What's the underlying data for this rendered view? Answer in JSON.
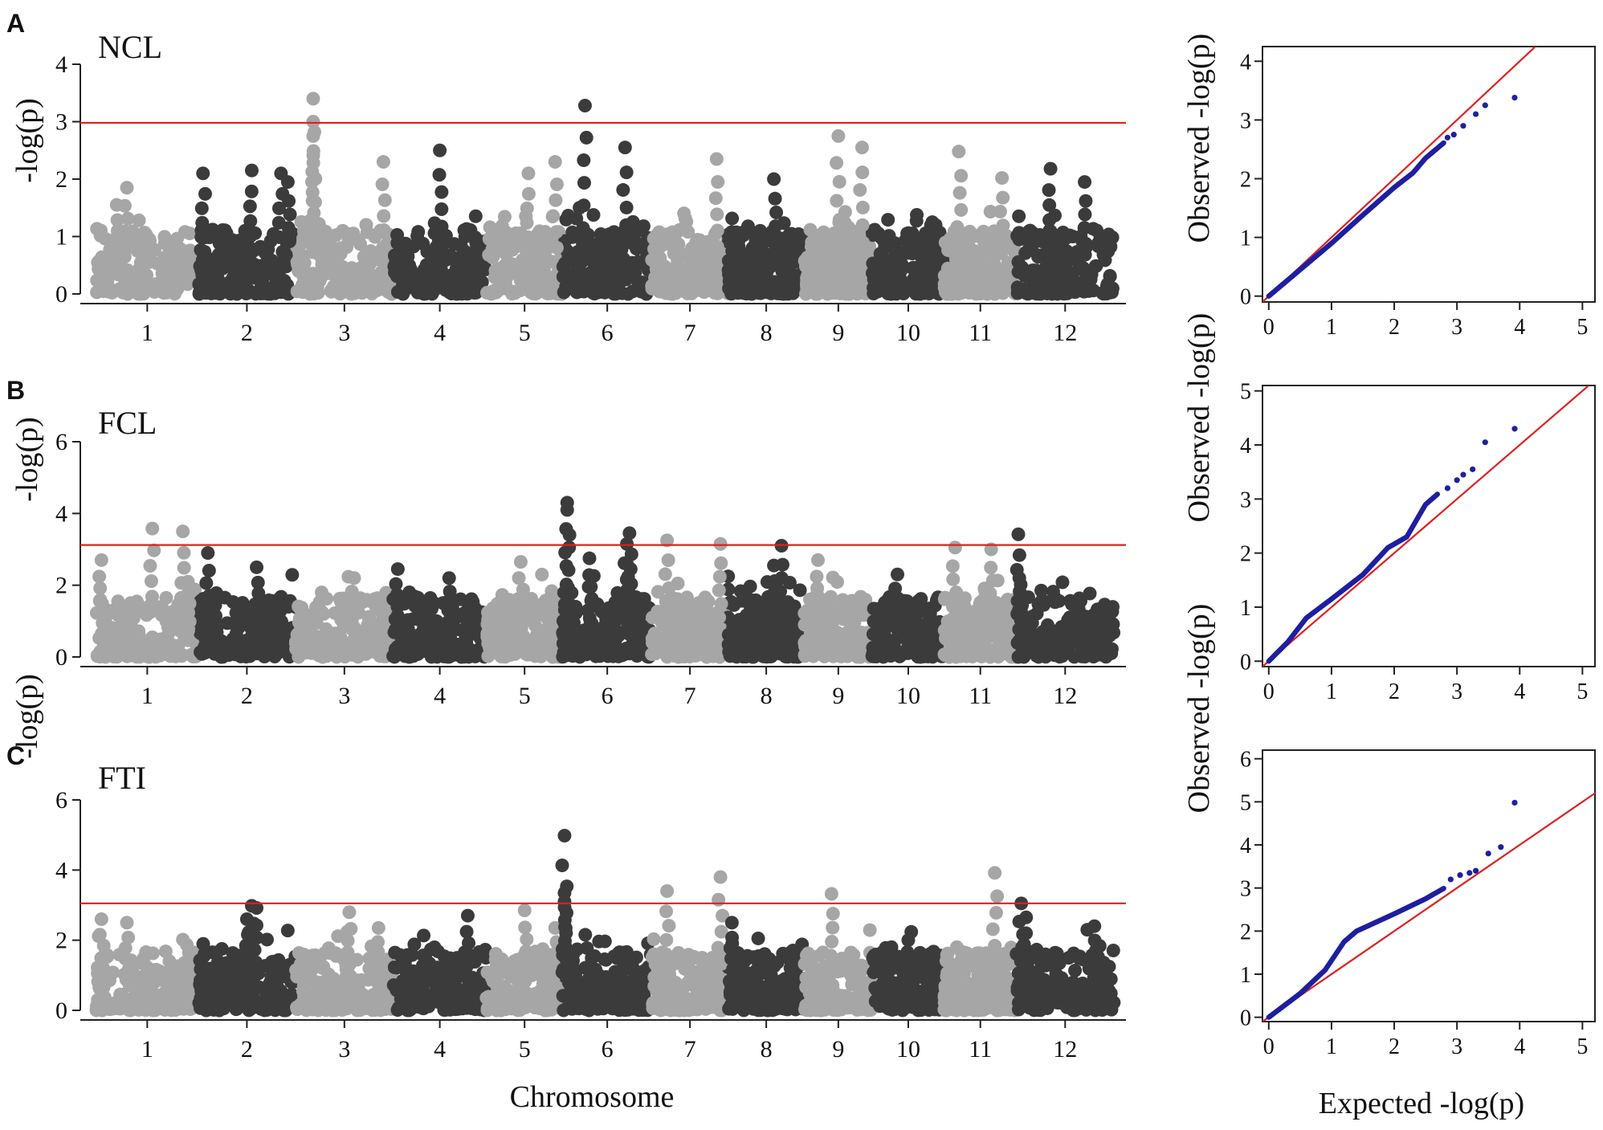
{
  "figure": {
    "xlabel_manhattan": "Chromosome",
    "xlabel_qq": "Expected -log(p)",
    "ylabel_manhattan": "-log(p)",
    "ylabel_qq": "Observed -log(p)",
    "p_italic": "p"
  },
  "colors": {
    "light_grey": "#a6a6a6",
    "dark_grey": "#3b3b3b",
    "threshold": "#e02020",
    "qq_points": "#1f1fa0",
    "axis": "#222222"
  },
  "chart_data": [
    {
      "type": "scatter",
      "subtype": "manhattan",
      "panel": "A",
      "title": "NCL",
      "xlabel": "",
      "ylabel": "-log(p)",
      "ylim": [
        0,
        4
      ],
      "yticks": [
        0,
        1,
        2,
        3,
        4
      ],
      "threshold": 2.98,
      "chromosomes": [
        "1",
        "2",
        "3",
        "4",
        "5",
        "6",
        "7",
        "8",
        "9",
        "10",
        "11",
        "12"
      ],
      "chrom_ranges": [
        [
          0,
          1.2
        ],
        [
          1.2,
          2.35
        ],
        [
          2.35,
          3.5
        ],
        [
          3.5,
          4.6
        ],
        [
          4.6,
          5.5
        ],
        [
          5.5,
          6.55
        ],
        [
          6.55,
          7.45
        ],
        [
          7.45,
          8.35
        ],
        [
          8.35,
          9.15
        ],
        [
          9.15,
          10.0
        ],
        [
          10.0,
          10.85
        ],
        [
          10.85,
          12.0
        ]
      ],
      "peaks": [
        {
          "chr": 1,
          "pos": 0.3,
          "y": 1.85
        },
        {
          "chr": 1,
          "pos": 0.2,
          "y": 1.55
        },
        {
          "chr": 2,
          "pos": 0.05,
          "y": 2.1
        },
        {
          "chr": 2,
          "pos": 0.55,
          "y": 2.15
        },
        {
          "chr": 2,
          "pos": 0.85,
          "y": 2.1
        },
        {
          "chr": 2,
          "pos": 0.92,
          "y": 1.95
        },
        {
          "chr": 3,
          "pos": 0.18,
          "y": 3.4
        },
        {
          "chr": 3,
          "pos": 0.18,
          "y": 3.0
        },
        {
          "chr": 3,
          "pos": 0.18,
          "y": 2.75
        },
        {
          "chr": 3,
          "pos": 0.9,
          "y": 2.3
        },
        {
          "chr": 4,
          "pos": 0.5,
          "y": 2.5
        },
        {
          "chr": 5,
          "pos": 0.55,
          "y": 2.1
        },
        {
          "chr": 5,
          "pos": 0.9,
          "y": 2.3
        },
        {
          "chr": 6,
          "pos": 0.25,
          "y": 3.28
        },
        {
          "chr": 6,
          "pos": 0.7,
          "y": 2.55
        },
        {
          "chr": 7,
          "pos": 0.85,
          "y": 2.35
        },
        {
          "chr": 8,
          "pos": 0.6,
          "y": 2.0
        },
        {
          "chr": 9,
          "pos": 0.5,
          "y": 2.75
        },
        {
          "chr": 9,
          "pos": 0.85,
          "y": 2.55
        },
        {
          "chr": 11,
          "pos": 0.2,
          "y": 2.48
        },
        {
          "chr": 11,
          "pos": 0.8,
          "y": 2.02
        },
        {
          "chr": 12,
          "pos": 0.35,
          "y": 2.18
        },
        {
          "chr": 12,
          "pos": 0.7,
          "y": 1.95
        }
      ]
    },
    {
      "type": "scatter",
      "subtype": "manhattan",
      "panel": "B",
      "title": "FCL",
      "xlabel": "",
      "ylabel": "-log(p)",
      "ylim": [
        0,
        6
      ],
      "yticks": [
        0,
        2,
        4,
        6
      ],
      "threshold": 3.12,
      "chromosomes": [
        "1",
        "2",
        "3",
        "4",
        "5",
        "6",
        "7",
        "8",
        "9",
        "10",
        "11",
        "12"
      ],
      "chrom_ranges": [
        [
          0,
          1.2
        ],
        [
          1.2,
          2.35
        ],
        [
          2.35,
          3.5
        ],
        [
          3.5,
          4.6
        ],
        [
          4.6,
          5.5
        ],
        [
          5.5,
          6.55
        ],
        [
          6.55,
          7.45
        ],
        [
          7.45,
          8.35
        ],
        [
          8.35,
          9.15
        ],
        [
          9.15,
          10.0
        ],
        [
          10.0,
          10.85
        ],
        [
          10.85,
          12.0
        ]
      ],
      "peaks": [
        {
          "chr": 1,
          "pos": 0.05,
          "y": 2.7
        },
        {
          "chr": 1,
          "pos": 0.55,
          "y": 3.58
        },
        {
          "chr": 1,
          "pos": 0.85,
          "y": 3.5
        },
        {
          "chr": 1,
          "pos": 0.9,
          "y": 2.1
        },
        {
          "chr": 2,
          "pos": 0.1,
          "y": 2.9
        },
        {
          "chr": 2,
          "pos": 0.6,
          "y": 2.5
        },
        {
          "chr": 3,
          "pos": 0.6,
          "y": 2.2
        },
        {
          "chr": 4,
          "pos": 0.05,
          "y": 2.45
        },
        {
          "chr": 4,
          "pos": 0.6,
          "y": 2.2
        },
        {
          "chr": 5,
          "pos": 0.45,
          "y": 2.65
        },
        {
          "chr": 6,
          "pos": 0.05,
          "y": 4.3
        },
        {
          "chr": 6,
          "pos": 0.05,
          "y": 4.1
        },
        {
          "chr": 6,
          "pos": 0.3,
          "y": 2.75
        },
        {
          "chr": 6,
          "pos": 0.75,
          "y": 3.45
        },
        {
          "chr": 6,
          "pos": 0.72,
          "y": 3.15
        },
        {
          "chr": 6,
          "pos": 0.72,
          "y": 2.6
        },
        {
          "chr": 7,
          "pos": 0.2,
          "y": 3.25
        },
        {
          "chr": 7,
          "pos": 0.9,
          "y": 3.15
        },
        {
          "chr": 8,
          "pos": 0.7,
          "y": 3.1
        },
        {
          "chr": 8,
          "pos": 0.6,
          "y": 2.55
        },
        {
          "chr": 9,
          "pos": 0.2,
          "y": 2.7
        },
        {
          "chr": 10,
          "pos": 0.35,
          "y": 2.3
        },
        {
          "chr": 11,
          "pos": 0.15,
          "y": 3.05
        },
        {
          "chr": 11,
          "pos": 0.65,
          "y": 3.0
        },
        {
          "chr": 12,
          "pos": 0.02,
          "y": 3.42
        },
        {
          "chr": 12,
          "pos": 0.03,
          "y": 2.2
        }
      ]
    },
    {
      "type": "scatter",
      "subtype": "manhattan",
      "panel": "C",
      "title": "FTI",
      "xlabel": "Chromosome",
      "ylabel": "-log(p)",
      "ylim": [
        0,
        6
      ],
      "yticks": [
        0,
        2,
        4,
        6
      ],
      "threshold": 3.05,
      "chromosomes": [
        "1",
        "2",
        "3",
        "4",
        "5",
        "6",
        "7",
        "8",
        "9",
        "10",
        "11",
        "12"
      ],
      "chrom_ranges": [
        [
          0,
          1.2
        ],
        [
          1.2,
          2.35
        ],
        [
          2.35,
          3.5
        ],
        [
          3.5,
          4.6
        ],
        [
          4.6,
          5.5
        ],
        [
          5.5,
          6.55
        ],
        [
          6.55,
          7.45
        ],
        [
          7.45,
          8.35
        ],
        [
          8.35,
          9.15
        ],
        [
          9.15,
          10.0
        ],
        [
          10.0,
          10.85
        ],
        [
          10.85,
          12.0
        ]
      ],
      "peaks": [
        {
          "chr": 1,
          "pos": 0.05,
          "y": 2.6
        },
        {
          "chr": 1,
          "pos": 0.3,
          "y": 2.5
        },
        {
          "chr": 2,
          "pos": 0.55,
          "y": 2.98
        },
        {
          "chr": 2,
          "pos": 0.6,
          "y": 2.92
        },
        {
          "chr": 2,
          "pos": 0.5,
          "y": 2.6
        },
        {
          "chr": 3,
          "pos": 0.55,
          "y": 2.8
        },
        {
          "chr": 3,
          "pos": 0.85,
          "y": 2.35
        },
        {
          "chr": 4,
          "pos": 0.8,
          "y": 2.7
        },
        {
          "chr": 5,
          "pos": 0.5,
          "y": 2.85
        },
        {
          "chr": 5,
          "pos": 0.9,
          "y": 2.35
        },
        {
          "chr": 6,
          "pos": 0.02,
          "y": 4.98
        },
        {
          "chr": 6,
          "pos": 0.02,
          "y": 3.35
        },
        {
          "chr": 6,
          "pos": 0.02,
          "y": 3.1
        },
        {
          "chr": 7,
          "pos": 0.2,
          "y": 3.4
        },
        {
          "chr": 7,
          "pos": 0.9,
          "y": 3.8
        },
        {
          "chr": 8,
          "pos": 0.05,
          "y": 2.5
        },
        {
          "chr": 9,
          "pos": 0.4,
          "y": 3.32
        },
        {
          "chr": 10,
          "pos": 0.5,
          "y": 2.0
        },
        {
          "chr": 11,
          "pos": 0.7,
          "y": 3.92
        },
        {
          "chr": 12,
          "pos": 0.05,
          "y": 3.05
        },
        {
          "chr": 12,
          "pos": 0.1,
          "y": 2.65
        },
        {
          "chr": 12,
          "pos": 0.8,
          "y": 2.4
        }
      ]
    },
    {
      "type": "scatter",
      "subtype": "qq",
      "panel": "A",
      "xlabel": "Expected -log(p)",
      "ylabel": "Observed -log(p)",
      "xlim": [
        -0.1,
        5.2
      ],
      "ylim": [
        -0.1,
        4.25
      ],
      "xticks": [
        0,
        1,
        2,
        3,
        4,
        5
      ],
      "yticks": [
        0,
        1,
        2,
        3,
        4
      ],
      "curve": [
        [
          0,
          0
        ],
        [
          0.5,
          0.45
        ],
        [
          1.0,
          0.9
        ],
        [
          1.5,
          1.38
        ],
        [
          2.0,
          1.85
        ],
        [
          2.3,
          2.1
        ],
        [
          2.5,
          2.35
        ],
        [
          2.8,
          2.62
        ]
      ],
      "tail_points": [
        [
          2.85,
          2.7
        ],
        [
          2.95,
          2.75
        ],
        [
          3.1,
          2.9
        ],
        [
          3.3,
          3.1
        ],
        [
          3.45,
          3.25
        ],
        [
          3.92,
          3.38
        ]
      ]
    },
    {
      "type": "scatter",
      "subtype": "qq",
      "panel": "B",
      "xlabel": "Expected -log(p)",
      "ylabel": "Observed -log(p)",
      "xlim": [
        -0.1,
        5.2
      ],
      "ylim": [
        -0.1,
        5.1
      ],
      "xticks": [
        0,
        1,
        2,
        3,
        4,
        5
      ],
      "yticks": [
        0,
        1,
        2,
        3,
        4,
        5
      ],
      "curve": [
        [
          0,
          0
        ],
        [
          0.3,
          0.35
        ],
        [
          0.6,
          0.8
        ],
        [
          1.0,
          1.15
        ],
        [
          1.5,
          1.6
        ],
        [
          1.9,
          2.1
        ],
        [
          2.2,
          2.3
        ],
        [
          2.5,
          2.9
        ],
        [
          2.7,
          3.1
        ]
      ],
      "tail_points": [
        [
          2.85,
          3.2
        ],
        [
          3.0,
          3.35
        ],
        [
          3.1,
          3.45
        ],
        [
          3.25,
          3.55
        ],
        [
          3.45,
          4.05
        ],
        [
          3.92,
          4.3
        ]
      ]
    },
    {
      "type": "scatter",
      "subtype": "qq",
      "panel": "C",
      "xlabel": "Expected -log(p)",
      "ylabel": "Observed -log(p)",
      "xlim": [
        -0.1,
        5.2
      ],
      "ylim": [
        -0.1,
        6.2
      ],
      "xticks": [
        0,
        1,
        2,
        3,
        4,
        5
      ],
      "yticks": [
        0,
        1,
        2,
        3,
        4,
        5,
        6
      ],
      "curve": [
        [
          0,
          0
        ],
        [
          0.5,
          0.55
        ],
        [
          0.9,
          1.1
        ],
        [
          1.2,
          1.75
        ],
        [
          1.4,
          2.0
        ],
        [
          2.0,
          2.4
        ],
        [
          2.5,
          2.75
        ],
        [
          2.8,
          3.0
        ]
      ],
      "tail_points": [
        [
          2.9,
          3.2
        ],
        [
          3.05,
          3.3
        ],
        [
          3.2,
          3.35
        ],
        [
          3.3,
          3.4
        ],
        [
          3.5,
          3.8
        ],
        [
          3.7,
          3.95
        ],
        [
          3.92,
          4.98
        ]
      ]
    }
  ]
}
